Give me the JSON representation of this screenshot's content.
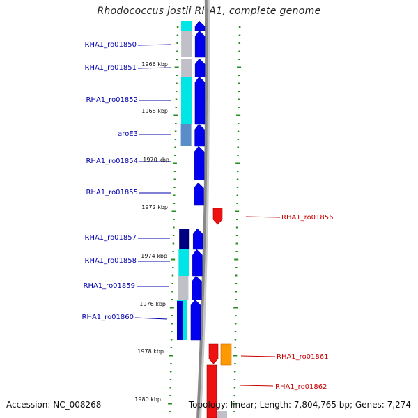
{
  "title": "Rhodococcus jostii RHA1, complete genome",
  "footer": {
    "accession": "Accession: NC_008268",
    "summary": "Topology: linear; Length: 7,804,765 bp; Genes: 7,274"
  },
  "colors": {
    "forward_gene": "#0000ee",
    "reverse_gene": "#ee0000",
    "ticks": "#228b22",
    "forward_label": "#0000aa",
    "reverse_label": "#cc0000",
    "backbone": "#888888"
  },
  "scale": [
    "1966 kbp",
    "1968 kbp",
    "1970 kbp",
    "1972 kbp",
    "1974 kbp",
    "1976 kbp",
    "1978 kbp",
    "1980 kbp"
  ],
  "forward_genes": [
    "RHA1_ro01850",
    "RHA1_ro01851",
    "RHA1_ro01852",
    "aroE3",
    "RHA1_ro01854",
    "RHA1_ro01855",
    "RHA1_ro01857",
    "RHA1_ro01858",
    "RHA1_ro01859",
    "RHA1_ro01860"
  ],
  "reverse_genes": [
    "RHA1_ro01856",
    "RHA1_ro01861",
    "RHA1_ro01862"
  ]
}
